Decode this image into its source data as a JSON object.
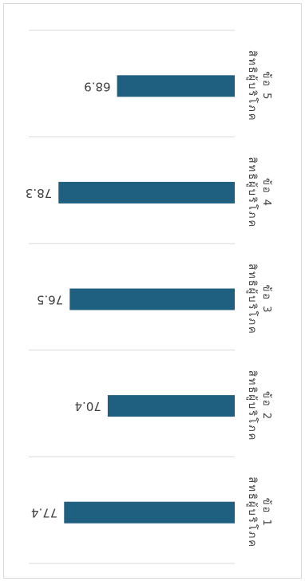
{
  "chart_data": {
    "type": "bar",
    "orientation": "horizontal",
    "rotated": "180deg",
    "categories": [
      "สิทธิผู้บริโภค ข้อ 1",
      "สิทธิผู้บริโภค ข้อ 2",
      "สิทธิผู้บริโภค ข้อ 3",
      "สิทธิผู้บริโภค ข้อ 4",
      "สิทธิผู้บริโภค ข้อ 5"
    ],
    "values": [
      77.4,
      70.4,
      76.5,
      78.3,
      68.9
    ],
    "value_labels": [
      "77.4",
      "70.4",
      "76.5",
      "78.3",
      "68.9"
    ],
    "title": "",
    "xlabel": "",
    "ylabel": "",
    "xlim": [
      50,
      80
    ],
    "grid": true,
    "legend": "none",
    "colors": {
      "bar": "#1f5f7f",
      "grid": "#d9d9d9",
      "label": "#404040",
      "value": "#404040",
      "frame": "#d9d9d9"
    }
  }
}
